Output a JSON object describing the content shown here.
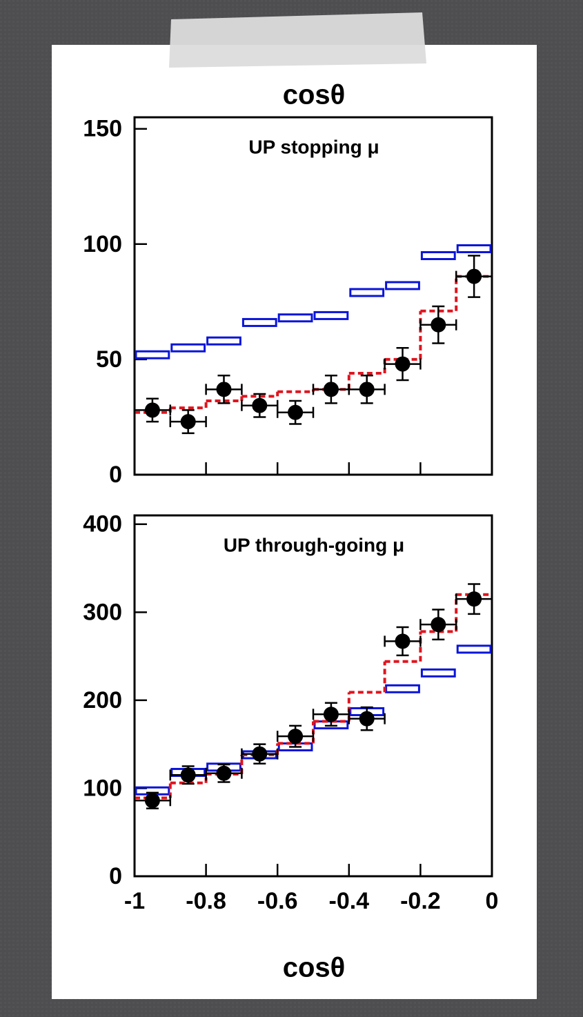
{
  "chart_data": [
    {
      "type": "histogram",
      "x_label": "cosθ",
      "annotation": "UP stopping μ",
      "bins": [
        -1,
        -0.9,
        -0.8,
        -0.7,
        -0.6,
        -0.5,
        -0.4,
        -0.3,
        -0.2,
        -0.1,
        0
      ],
      "xlim": [
        -1,
        0
      ],
      "xticks": [
        -1,
        -0.8,
        -0.6,
        -0.4,
        -0.2,
        0
      ],
      "xtick_labels": false,
      "ylim": [
        0,
        155
      ],
      "yticks": [
        0,
        50,
        100,
        150
      ],
      "series": [
        {
          "style": "box",
          "color": "#0a14d8",
          "values": [
            52,
            55,
            58,
            66,
            68,
            69,
            79,
            82,
            95,
            98
          ]
        },
        {
          "style": "dashed",
          "color": "#e0141e",
          "values": [
            27,
            29,
            32,
            34,
            36,
            37,
            44,
            50,
            71,
            86
          ]
        },
        {
          "style": "points",
          "color": "#000000",
          "values": [
            28,
            23,
            37,
            30,
            27,
            37,
            37,
            48,
            65,
            86
          ],
          "errors": [
            5,
            5,
            6,
            5,
            5,
            6,
            6,
            7,
            8,
            9
          ]
        }
      ]
    },
    {
      "type": "histogram",
      "x_label": "cosθ",
      "annotation": "UP through-going μ",
      "bins": [
        -1,
        -0.9,
        -0.8,
        -0.7,
        -0.6,
        -0.5,
        -0.4,
        -0.3,
        -0.2,
        -0.1,
        0
      ],
      "xlim": [
        -1,
        0
      ],
      "xticks": [
        -1,
        -0.8,
        -0.6,
        -0.4,
        -0.2,
        0
      ],
      "xtick_labels": true,
      "ylim": [
        0,
        410
      ],
      "yticks": [
        0,
        100,
        200,
        300,
        400
      ],
      "series": [
        {
          "style": "box",
          "color": "#0a14d8",
          "values": [
            97,
            118,
            124,
            138,
            147,
            172,
            187,
            213,
            231,
            258
          ]
        },
        {
          "style": "dashed",
          "color": "#e0141e",
          "values": [
            89,
            106,
            116,
            138,
            151,
            176,
            209,
            244,
            278,
            320
          ]
        },
        {
          "style": "points",
          "color": "#000000",
          "values": [
            86,
            115,
            117,
            139,
            159,
            184,
            179,
            267,
            286,
            315
          ],
          "errors": [
            9,
            10,
            10,
            11,
            12,
            13,
            13,
            16,
            17,
            17
          ]
        }
      ]
    }
  ]
}
